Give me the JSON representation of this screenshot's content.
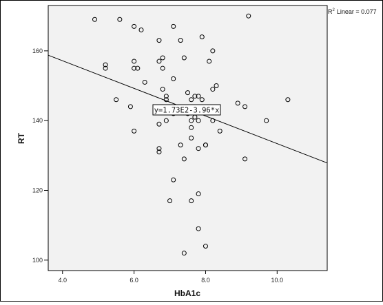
{
  "chart_data": {
    "type": "scatter",
    "xlabel": "HbA1c",
    "ylabel": "RT",
    "xlim": [
      3.6,
      11.4
    ],
    "ylim": [
      97,
      173
    ],
    "x_ticks": [
      "4.0",
      "6.0",
      "8.0",
      "10.0"
    ],
    "y_ticks": [
      "100",
      "120",
      "140",
      "160"
    ],
    "r2_label": "Linear = 0.077",
    "fit_line": {
      "equation": "y=1.73E2-3.96*x",
      "intercept": 173,
      "slope": -3.96
    },
    "marker_color": "#000000",
    "plot_background": "#f2f2f2",
    "x": [
      4.9,
      5.6,
      6.0,
      6.2,
      6.7,
      7.1,
      7.3,
      7.9,
      9.2,
      5.2,
      5.2,
      6.0,
      6.0,
      6.1,
      6.7,
      6.8,
      6.8,
      7.4,
      8.1,
      8.2,
      6.3,
      7.1,
      5.5,
      5.9,
      6.8,
      6.9,
      6.9,
      7.5,
      7.6,
      7.7,
      7.8,
      7.9,
      8.2,
      8.3,
      8.9,
      9.1,
      10.3,
      6.0,
      6.7,
      6.9,
      7.1,
      7.5,
      7.6,
      7.6,
      7.7,
      7.8,
      8.0,
      8.2,
      8.4,
      9.7,
      6.7,
      6.7,
      7.3,
      7.4,
      7.6,
      7.8,
      8.0,
      9.1,
      7.1,
      7.0,
      7.6,
      7.8,
      7.8,
      8.0,
      7.4
    ],
    "y": [
      169,
      169,
      167,
      166,
      163,
      167,
      163,
      164,
      170,
      156,
      155,
      157,
      155,
      155,
      157,
      158,
      155,
      158,
      157,
      160,
      151,
      152,
      146,
      144,
      149,
      147,
      146,
      148,
      146,
      147,
      147,
      146,
      149,
      150,
      145,
      144,
      146,
      137,
      139,
      140,
      142,
      142,
      140,
      138,
      141,
      140,
      133,
      140,
      137,
      140,
      132,
      131,
      133,
      129,
      135,
      132,
      133,
      129,
      123,
      117,
      117,
      119,
      109,
      104,
      102
    ]
  }
}
